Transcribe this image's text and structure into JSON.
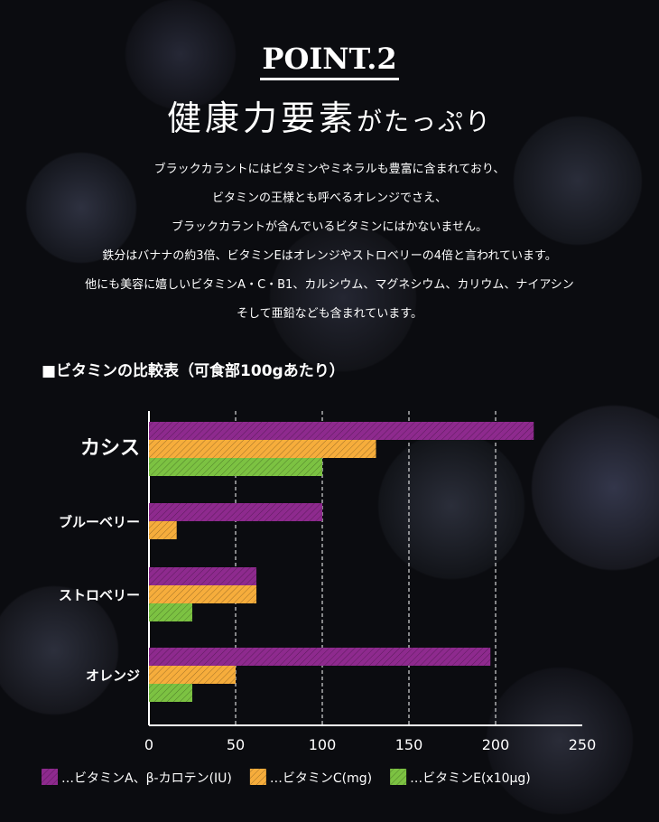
{
  "header": {
    "point": "POINT.2",
    "title_main": "健康力要素",
    "title_sub": "がたっぷり"
  },
  "body": [
    "ブラックカラントにはビタミンやミネラルも豊富に含まれており、",
    "ビタミンの王様とも呼べるオレンジでさえ、",
    "ブラックカラントが含んでいるビタミンにはかないません。",
    "鉄分はバナナの約3倍、ビタミンEはオレンジやストロベリーの4倍と言われています。",
    "他にも美容に嬉しいビタミンA・C・B1、カルシウム、マグネシウム、カリウム、ナイアシン",
    "そして亜鉛なども含まれています。"
  ],
  "chart_data": {
    "type": "bar",
    "orientation": "horizontal",
    "title": "■ビタミンの比較表（可食部100gあたり）",
    "categories": [
      "カシス",
      "ブルーベリー",
      "ストロベリー",
      "オレンジ"
    ],
    "series": [
      {
        "name": "…ビタミンA、β-カロテン(IU)",
        "color": "#8e2a8e",
        "values": [
          222,
          100,
          62,
          197
        ]
      },
      {
        "name": "…ビタミンC(mg)",
        "color": "#f6ad3c",
        "values": [
          131,
          16,
          62,
          50
        ]
      },
      {
        "name": "…ビタミンE(x10μg)",
        "color": "#7cc242",
        "values": [
          100,
          null,
          25,
          25
        ]
      }
    ],
    "xlim": [
      0,
      250
    ],
    "xticks": [
      0,
      50,
      100,
      150,
      200,
      250
    ],
    "grid": "vertical dashed",
    "legend": "bottom"
  }
}
